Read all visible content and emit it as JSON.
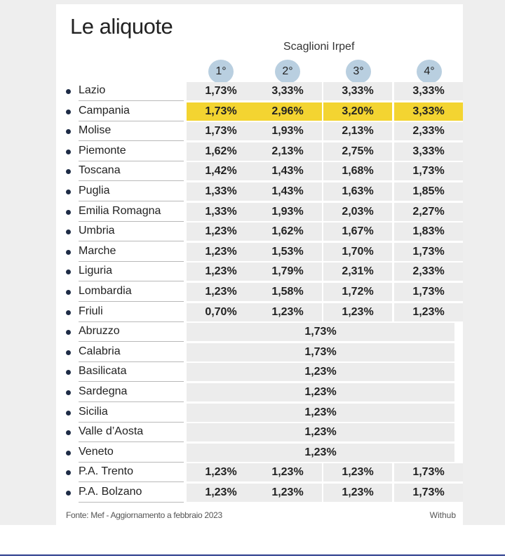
{
  "title": "Le aliquote",
  "subtitle": "Scaglioni Irpef",
  "brackets": [
    "1°",
    "2°",
    "3°",
    "4°"
  ],
  "highlight_color": "#f3d431",
  "rows": [
    {
      "region": "Lazio",
      "rates": [
        "1,73%",
        "3,33%",
        "3,33%",
        "3,33%"
      ]
    },
    {
      "region": "Campania",
      "rates": [
        "1,73%",
        "2,96%",
        "3,20%",
        "3,33%"
      ],
      "highlighted": true
    },
    {
      "region": "Molise",
      "rates": [
        "1,73%",
        "1,93%",
        "2,13%",
        "2,33%"
      ]
    },
    {
      "region": "Piemonte",
      "rates": [
        "1,62%",
        "2,13%",
        "2,75%",
        "3,33%"
      ]
    },
    {
      "region": "Toscana",
      "rates": [
        "1,42%",
        "1,43%",
        "1,68%",
        "1,73%"
      ]
    },
    {
      "region": "Puglia",
      "rates": [
        "1,33%",
        "1,43%",
        "1,63%",
        "1,85%"
      ]
    },
    {
      "region": "Emilia Romagna",
      "rates": [
        "1,33%",
        "1,93%",
        "2,03%",
        "2,27%"
      ]
    },
    {
      "region": "Umbria",
      "rates": [
        "1,23%",
        "1,62%",
        "1,67%",
        "1,83%"
      ]
    },
    {
      "region": "Marche",
      "rates": [
        "1,23%",
        "1,53%",
        "1,70%",
        "1,73%"
      ]
    },
    {
      "region": "Liguria",
      "rates": [
        "1,23%",
        "1,79%",
        "2,31%",
        "2,33%"
      ]
    },
    {
      "region": "Lombardia",
      "rates": [
        "1,23%",
        "1,58%",
        "1,72%",
        "1,73%"
      ]
    },
    {
      "region": "Friuli",
      "rates": [
        "0,70%",
        "1,23%",
        "1,23%",
        "1,23%"
      ]
    },
    {
      "region": "Abruzzo",
      "flat": "1,73%"
    },
    {
      "region": "Calabria",
      "flat": "1,73%"
    },
    {
      "region": "Basilicata",
      "flat": "1,23%"
    },
    {
      "region": "Sardegna",
      "flat": "1,23%"
    },
    {
      "region": "Sicilia",
      "flat": "1,23%"
    },
    {
      "region": "Valle d’Aosta",
      "flat": "1,23%"
    },
    {
      "region": "Veneto",
      "flat": "1,23%"
    },
    {
      "region": "P.A. Trento",
      "rates": [
        "1,23%",
        "1,23%",
        "1,23%",
        "1,73%"
      ]
    },
    {
      "region": "P.A. Bolzano",
      "rates": [
        "1,23%",
        "1,23%",
        "1,23%",
        "1,73%"
      ]
    }
  ],
  "footer": {
    "source": "Fonte: Mef - Aggiornamento a febbraio 2023",
    "brand": "Withub"
  }
}
